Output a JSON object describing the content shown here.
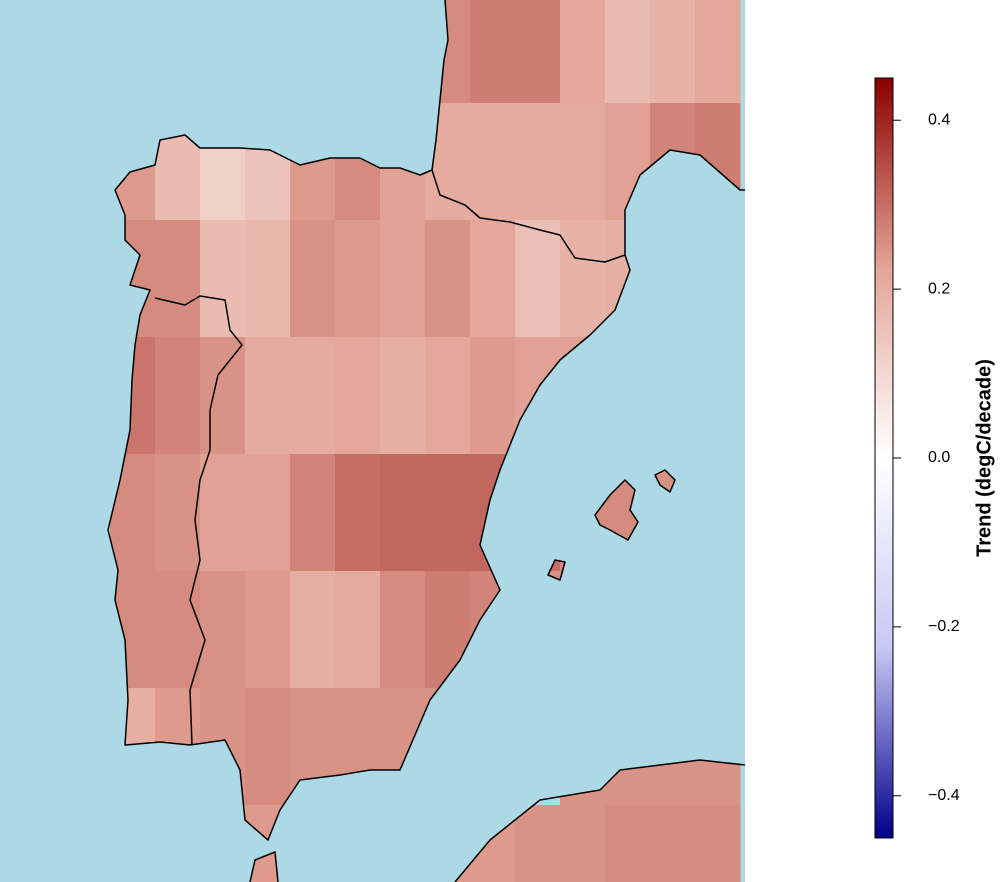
{
  "chart_data": {
    "type": "heatmap",
    "grid": [
      [
        null,
        null,
        null,
        null,
        null,
        null,
        null,
        0.26,
        0.28,
        0.28,
        0.22,
        0.17,
        0.19,
        0.22
      ],
      [
        0.24,
        0.17,
        0.12,
        0.15,
        0.24,
        0.26,
        0.23,
        0.21,
        0.21,
        0.21,
        0.21,
        0.23,
        0.27,
        0.28
      ],
      [
        0.26,
        0.26,
        0.17,
        0.18,
        0.25,
        0.24,
        0.23,
        0.25,
        0.22,
        0.16,
        0.19,
        0.2,
        null,
        null
      ],
      [
        0.29,
        0.27,
        0.25,
        0.21,
        0.21,
        0.22,
        0.2,
        0.22,
        0.24,
        0.23,
        0.23,
        null,
        null,
        null
      ],
      [
        0.26,
        0.25,
        0.23,
        0.23,
        0.27,
        0.3,
        0.31,
        0.31,
        0.31,
        0.3,
        0.26,
        0.26,
        0.25,
        null
      ],
      [
        0.26,
        0.26,
        0.25,
        0.24,
        0.2,
        0.21,
        0.26,
        0.28,
        0.27,
        0.25,
        0.25,
        null,
        null,
        null
      ],
      [
        0.2,
        0.24,
        0.25,
        0.26,
        0.25,
        0.25,
        0.25,
        0.25,
        null,
        null,
        0.25,
        0.25,
        0.25,
        0.25
      ],
      [
        null,
        null,
        null,
        0.24,
        null,
        null,
        null,
        0.24,
        0.24,
        0.25,
        0.25,
        0.26,
        0.26,
        0.26
      ]
    ],
    "colors": [
      "#00008b",
      "#c8c8f5",
      "#ffffff",
      "#e3a597",
      "#8b0000"
    ],
    "zlim": [
      -0.45,
      0.45
    ],
    "zticks": [
      0.4,
      0.2,
      {
        "value": 0,
        "label": "0.0"
      },
      {
        "value": -0.2,
        "label": "−0.2"
      },
      {
        "value": -0.4,
        "label": "−0.4"
      }
    ],
    "zlabel": "Trend (degC/decade)"
  }
}
